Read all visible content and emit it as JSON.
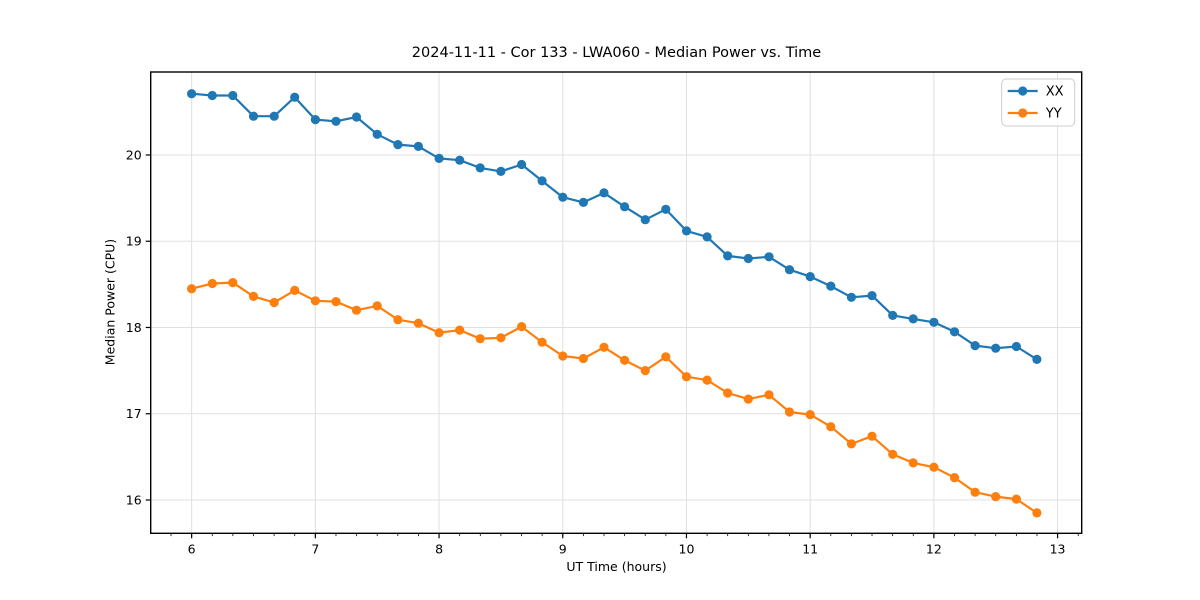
{
  "chart_data": {
    "type": "line",
    "title": "2024-11-11 - Cor 133 - LWA060 - Median Power vs. Time",
    "xlabel": "UT Time (hours)",
    "ylabel": "Median Power (CPU)",
    "xlim": [
      5.669,
      13.195
    ],
    "ylim": [
      15.614,
      20.962
    ],
    "x_major_ticks": [
      6,
      7,
      8,
      9,
      10,
      11,
      12,
      13
    ],
    "x_minor_step": 0.166667,
    "y_major_ticks": [
      16,
      17,
      18,
      19,
      20
    ],
    "grid": true,
    "grid_color": "#e0e0e0",
    "axis_color": "#000000",
    "legend_position": "upper right",
    "legend_border_color": "#cccccc",
    "x": [
      6.0,
      6.167,
      6.333,
      6.5,
      6.667,
      6.833,
      7.0,
      7.167,
      7.333,
      7.5,
      7.667,
      7.833,
      8.0,
      8.167,
      8.333,
      8.5,
      8.667,
      8.833,
      9.0,
      9.167,
      9.333,
      9.5,
      9.667,
      9.833,
      10.0,
      10.167,
      10.333,
      10.5,
      10.667,
      10.833,
      11.0,
      11.167,
      11.333,
      11.5,
      11.667,
      11.833,
      12.0,
      12.167,
      12.333,
      12.5,
      12.667,
      12.833
    ],
    "series": [
      {
        "name": "XX",
        "color": "#1f77b4",
        "values": [
          20.71,
          20.69,
          20.69,
          20.45,
          20.45,
          20.67,
          20.41,
          20.39,
          20.44,
          20.24,
          20.12,
          20.1,
          19.96,
          19.94,
          19.85,
          19.81,
          19.89,
          19.7,
          19.51,
          19.45,
          19.56,
          19.4,
          19.25,
          19.37,
          19.12,
          19.05,
          18.83,
          18.8,
          18.82,
          18.67,
          18.59,
          18.48,
          18.35,
          18.37,
          18.14,
          18.1,
          18.06,
          17.95,
          17.79,
          17.76,
          17.78,
          17.63
        ]
      },
      {
        "name": "YY",
        "color": "#ff7f0e",
        "values": [
          18.45,
          18.51,
          18.52,
          18.36,
          18.29,
          18.43,
          18.31,
          18.3,
          18.2,
          18.25,
          18.09,
          18.05,
          17.94,
          17.97,
          17.87,
          17.88,
          18.01,
          17.83,
          17.67,
          17.64,
          17.77,
          17.62,
          17.5,
          17.66,
          17.43,
          17.39,
          17.24,
          17.17,
          17.22,
          17.02,
          16.99,
          16.85,
          16.65,
          16.74,
          16.53,
          16.43,
          16.38,
          16.26,
          16.09,
          16.04,
          16.01,
          15.85
        ]
      }
    ]
  }
}
